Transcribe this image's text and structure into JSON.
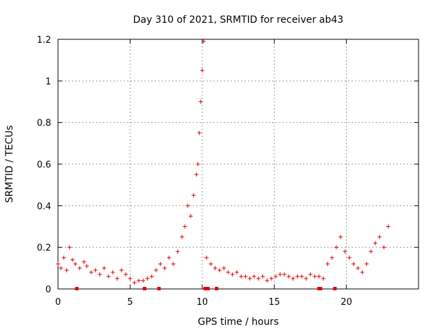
{
  "chart_data": {
    "type": "scatter",
    "title": "Day 310 of 2021, SRMTID for receiver ab43",
    "xlabel": "GPS time / hours",
    "ylabel": "SRMTID / TECUs",
    "xlim": [
      0,
      25
    ],
    "ylim": [
      0,
      1.2
    ],
    "xticks": [
      "0",
      "5",
      "10",
      "15",
      "20"
    ],
    "yticks": [
      "0",
      "0.2",
      "0.4",
      "0.6",
      "0.8",
      "1",
      "1.2"
    ],
    "grid": true,
    "marker": "+",
    "series_color": "#e00000",
    "series": [
      {
        "name": "SRMTID",
        "x": [
          0.0,
          0.2,
          0.4,
          0.6,
          0.8,
          1.0,
          1.2,
          1.5,
          1.8,
          2.0,
          2.3,
          2.6,
          2.9,
          3.2,
          3.5,
          3.8,
          4.1,
          4.4,
          4.7,
          5.0,
          5.3,
          5.6,
          5.9,
          6.2,
          6.5,
          6.8,
          7.1,
          7.4,
          7.7,
          8.0,
          8.3,
          8.6,
          8.8,
          9.0,
          9.2,
          9.4,
          9.6,
          9.7,
          9.8,
          9.9,
          10.0,
          10.1,
          10.3,
          10.6,
          10.9,
          11.2,
          11.5,
          11.8,
          12.1,
          12.4,
          12.7,
          13.0,
          13.3,
          13.6,
          13.9,
          14.2,
          14.5,
          14.8,
          15.1,
          15.4,
          15.7,
          16.0,
          16.3,
          16.6,
          16.9,
          17.2,
          17.5,
          17.8,
          18.1,
          18.4,
          18.7,
          19.0,
          19.3,
          19.6,
          19.9,
          20.2,
          20.5,
          20.8,
          21.1,
          21.4,
          21.7,
          22.0,
          22.3,
          22.6,
          22.9
        ],
        "y": [
          0.12,
          0.1,
          0.15,
          0.09,
          0.2,
          0.14,
          0.12,
          0.1,
          0.13,
          0.11,
          0.08,
          0.09,
          0.07,
          0.1,
          0.06,
          0.08,
          0.05,
          0.09,
          0.07,
          0.05,
          0.03,
          0.04,
          0.04,
          0.05,
          0.06,
          0.09,
          0.12,
          0.1,
          0.15,
          0.12,
          0.18,
          0.25,
          0.3,
          0.4,
          0.35,
          0.45,
          0.55,
          0.6,
          0.75,
          0.9,
          1.05,
          1.19,
          0.15,
          0.12,
          0.1,
          0.09,
          0.1,
          0.08,
          0.07,
          0.08,
          0.06,
          0.06,
          0.05,
          0.06,
          0.05,
          0.06,
          0.04,
          0.05,
          0.06,
          0.07,
          0.07,
          0.06,
          0.05,
          0.06,
          0.06,
          0.05,
          0.07,
          0.06,
          0.06,
          0.05,
          0.12,
          0.15,
          0.2,
          0.25,
          0.18,
          0.15,
          0.12,
          0.1,
          0.08,
          0.12,
          0.18,
          0.22,
          0.25,
          0.2,
          0.3
        ]
      }
    ],
    "gap_markers_x": [
      1.3,
      6.0,
      7.0,
      10.2,
      10.4,
      11.0,
      18.1,
      18.2,
      19.2
    ]
  }
}
